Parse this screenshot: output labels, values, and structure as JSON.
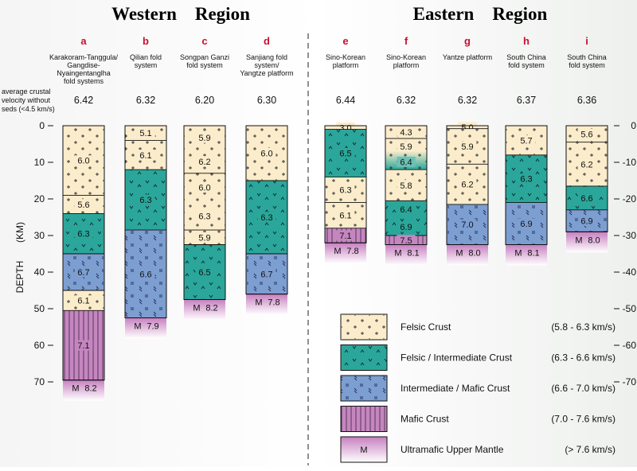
{
  "regions": {
    "west": "Western    Region",
    "east": "Eastern    Region"
  },
  "avg_label": [
    "average crustal",
    "velocity without",
    "seds (<4.5 km/s)"
  ],
  "axis": {
    "label": "DEPTH",
    "unit": "(KM)",
    "ticks": [
      0,
      10,
      20,
      30,
      40,
      50,
      60,
      70
    ]
  },
  "right_ticks": [
    "0",
    "-10",
    "-20",
    "-30",
    "-40",
    "-50",
    "-60",
    "-70"
  ],
  "mantle_symbol": "M",
  "types": {
    "felsic": {
      "color": "#fbeccb",
      "pat": "plus"
    },
    "fi": {
      "color": "#2aa79a",
      "pat": "vee"
    },
    "im": {
      "color": "#7d9ed1",
      "pat": "dash"
    },
    "mafic": {
      "color": "#c586c0",
      "pat": "vline"
    },
    "mantle": {
      "color": "#c586c0",
      "pat": "none"
    }
  },
  "columns": [
    {
      "letter": "a",
      "name": [
        "Karakoram-Tanggula/",
        "Gangdise-",
        "Nyaingentanglha",
        "fold systems"
      ],
      "avg": "6.42",
      "layers": [
        {
          "top": 0,
          "bot": 19,
          "type": "felsic",
          "v": "6.0"
        },
        {
          "top": 19,
          "bot": 24,
          "type": "felsic",
          "v": "5.6"
        },
        {
          "top": 24,
          "bot": 35,
          "type": "fi",
          "v": "6.3"
        },
        {
          "top": 35,
          "bot": 45,
          "type": "im",
          "v": "6.7"
        },
        {
          "top": 45,
          "bot": 50.5,
          "type": "felsic",
          "v": "6.1"
        },
        {
          "top": 50.5,
          "bot": 69.5,
          "type": "mafic",
          "v": "7.1"
        }
      ],
      "moho": "8.2"
    },
    {
      "letter": "b",
      "name": [
        "Qilian fold",
        "system"
      ],
      "avg": "6.32",
      "layers": [
        {
          "top": 0,
          "bot": 4,
          "type": "felsic",
          "v": "5.1"
        },
        {
          "top": 4,
          "bot": 12,
          "type": "felsic",
          "v": "6.1"
        },
        {
          "top": 12,
          "bot": 28.5,
          "type": "fi",
          "v": "6.3"
        },
        {
          "top": 28.5,
          "bot": 52.5,
          "type": "im",
          "v": "6.6"
        }
      ],
      "moho": "7.9"
    },
    {
      "letter": "c",
      "name": [
        "Songpan Ganzi",
        "fold system"
      ],
      "avg": "6.20",
      "layers": [
        {
          "top": 0,
          "bot": 13,
          "type": "felsic",
          "v": "5.9|6.2"
        },
        {
          "top": 13,
          "bot": 28.5,
          "type": "felsic",
          "v": "6.0|6.3"
        },
        {
          "top": 28.5,
          "bot": 32.5,
          "type": "felsic",
          "v": "5.9"
        },
        {
          "top": 32.5,
          "bot": 47.5,
          "type": "fi",
          "v": "6.5"
        }
      ],
      "moho": "8.2"
    },
    {
      "letter": "d",
      "name": [
        "Sanjiang fold",
        "system/",
        "Yangtze platform"
      ],
      "avg": "6.30",
      "layers": [
        {
          "top": 0,
          "bot": 15,
          "type": "felsic",
          "v": "6.0"
        },
        {
          "top": 15,
          "bot": 35,
          "type": "fi",
          "v": "6.3"
        },
        {
          "top": 35,
          "bot": 46,
          "type": "im",
          "v": "6.7"
        }
      ],
      "moho": "7.8"
    },
    {
      "letter": "e",
      "name": [
        "Sino-Korean",
        "platform"
      ],
      "avg": "6.44",
      "layers": [
        {
          "top": 0,
          "bot": 1,
          "type": "felsic",
          "v": "3.0"
        },
        {
          "top": 1,
          "bot": 14,
          "type": "fi",
          "v": "6.5"
        },
        {
          "top": 14,
          "bot": 21,
          "type": "felsic",
          "v": "6.3"
        },
        {
          "top": 21,
          "bot": 28,
          "type": "felsic",
          "v": "6.1"
        },
        {
          "top": 28,
          "bot": 32,
          "type": "mafic",
          "v": "7.1"
        }
      ],
      "moho": "7.8"
    },
    {
      "letter": "f",
      "name": [
        "Sino-Korean",
        "platform"
      ],
      "avg": "6.32",
      "layers": [
        {
          "top": 0,
          "bot": 3.5,
          "type": "felsic",
          "v": "4.3"
        },
        {
          "top": 3.5,
          "bot": 12,
          "type": "grad",
          "v": "5.9|6.4"
        },
        {
          "top": 12,
          "bot": 20.5,
          "type": "felsic",
          "v": "5.8"
        },
        {
          "top": 20.5,
          "bot": 30,
          "type": "fi",
          "v": "6.4|6.9"
        },
        {
          "top": 30,
          "bot": 32.5,
          "type": "mafic",
          "v": "7.5"
        }
      ],
      "moho": "8.1"
    },
    {
      "letter": "g",
      "name": [
        "Yantze platform"
      ],
      "avg": "6.32",
      "layers": [
        {
          "top": 0,
          "bot": 0.8,
          "type": "felsic",
          "v": "5.0"
        },
        {
          "top": 0.8,
          "bot": 10.5,
          "type": "felsic",
          "v": "5.9"
        },
        {
          "top": 10.5,
          "bot": 21.5,
          "type": "felsic",
          "v": "6.2"
        },
        {
          "top": 21.5,
          "bot": 32.5,
          "type": "im",
          "v": "7.0"
        }
      ],
      "moho": "8.0"
    },
    {
      "letter": "h",
      "name": [
        "South China",
        "fold system"
      ],
      "avg": "6.37",
      "layers": [
        {
          "top": 0,
          "bot": 8,
          "type": "felsic",
          "v": "5.7"
        },
        {
          "top": 8,
          "bot": 21,
          "type": "fi",
          "v": "6.3"
        },
        {
          "top": 21,
          "bot": 32.5,
          "type": "im",
          "v": "6.9"
        }
      ],
      "moho": "8.1"
    },
    {
      "letter": "i",
      "name": [
        "South China",
        "fold system"
      ],
      "avg": "6.36",
      "layers": [
        {
          "top": 0,
          "bot": 4.5,
          "type": "felsic",
          "v": "5.6"
        },
        {
          "top": 4.5,
          "bot": 16.5,
          "type": "felsic",
          "v": "6.2"
        },
        {
          "top": 16.5,
          "bot": 23,
          "type": "fi",
          "v": "6.6"
        },
        {
          "top": 23,
          "bot": 29,
          "type": "im",
          "v": "6.9"
        }
      ],
      "moho": "8.0"
    }
  ],
  "legend": [
    {
      "type": "felsic",
      "label": "Felsic Crust",
      "range": "(5.8 - 6.3 km/s)"
    },
    {
      "type": "fi",
      "label": "Felsic / Intermediate Crust",
      "range": "(6.3 - 6.6 km/s)"
    },
    {
      "type": "im",
      "label": "Intermediate / Mafic Crust",
      "range": "(6.6 - 7.0 km/s)"
    },
    {
      "type": "mafic",
      "label": "Mafic Crust",
      "range": "(7.0 - 7.6 km/s)"
    },
    {
      "type": "mantle",
      "label": "Ultramafic Upper Mantle",
      "range": "(> 7.6 km/s)",
      "symbol": "M"
    }
  ]
}
